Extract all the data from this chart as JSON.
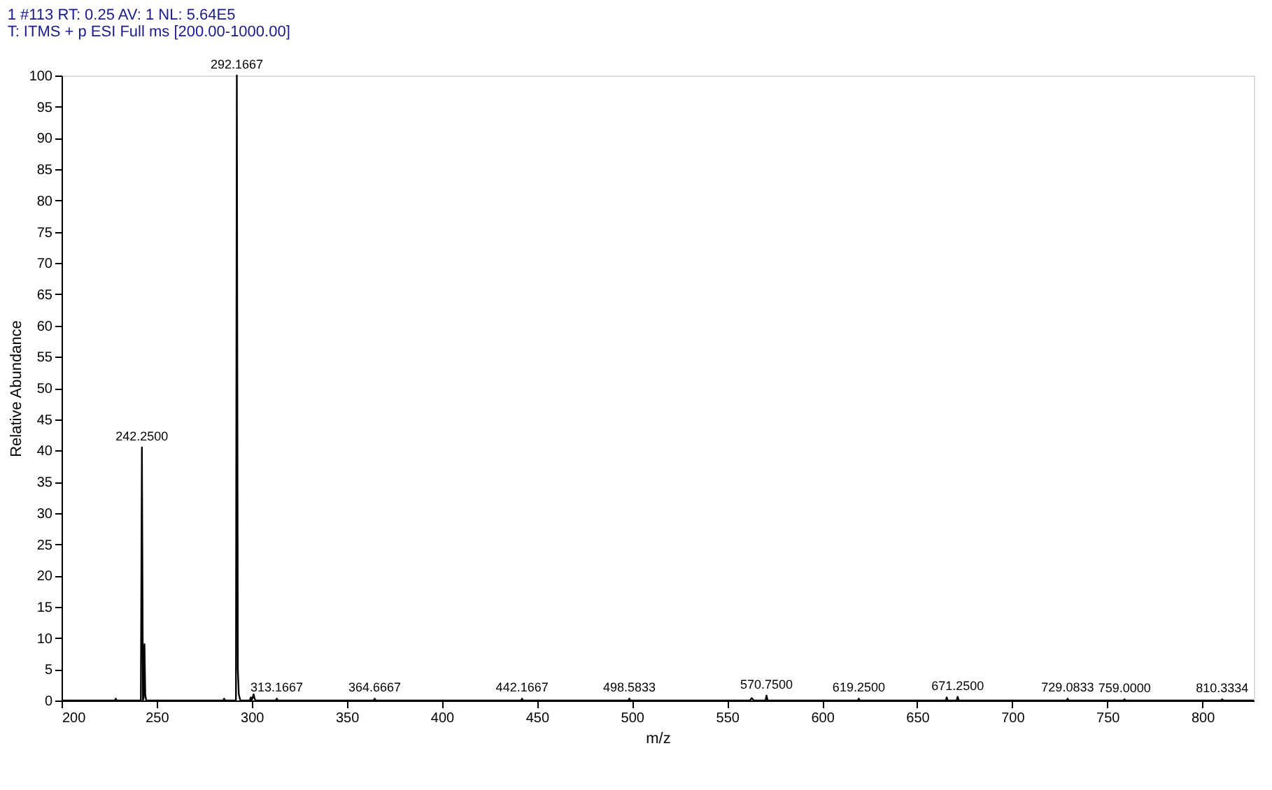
{
  "chart_data": {
    "type": "line",
    "title": "1 #113  RT: 0.25  AV: 1  NL: 5.64E5",
    "subtitle": "T: ITMS + p ESI Full ms [200.00-1000.00]",
    "xlabel": "m/z",
    "ylabel": "Relative Abundance",
    "xlim": [
      200,
      827
    ],
    "xticks": [
      200,
      250,
      300,
      350,
      400,
      450,
      500,
      550,
      600,
      650,
      700,
      750,
      800
    ],
    "ylim": [
      0,
      100
    ],
    "yticks": [
      0,
      5,
      10,
      15,
      20,
      25,
      30,
      35,
      40,
      45,
      50,
      55,
      60,
      65,
      70,
      75,
      80,
      85,
      90,
      95,
      100
    ],
    "grid": false,
    "line_style": "solid",
    "marker": "none",
    "series": [
      {
        "color": "#000000",
        "x": [
          200,
          228,
          228.5,
          229,
          241.7,
          242.25,
          242.8,
          243.2,
          243.6,
          244.0,
          244.5,
          245,
          285,
          285.5,
          286,
          291.7,
          292.17,
          292.7,
          293.2,
          294,
          299,
          299.5,
          300,
          301,
          301.5,
          302,
          312.6,
          313.17,
          313.7,
          364.1,
          364.67,
          365.2,
          441.6,
          442.17,
          442.7,
          498,
          498.58,
          499.1,
          562,
          563,
          564,
          570.2,
          570.75,
          571.3,
          618.7,
          619.25,
          619.8,
          665,
          665.5,
          666,
          670.7,
          671.25,
          671.8,
          728.5,
          729.08,
          729.6,
          758.5,
          759,
          759.5,
          809.8,
          810.33,
          810.9,
          827
        ],
        "values": [
          0,
          0,
          0.3,
          0,
          0,
          40.5,
          0,
          0.5,
          9,
          1,
          0,
          0,
          0,
          0.3,
          0,
          0,
          100,
          5,
          1,
          0,
          0,
          0.5,
          0,
          1,
          0.3,
          0,
          0,
          0.3,
          0,
          0,
          0.3,
          0,
          0,
          0.3,
          0,
          0,
          0.3,
          0,
          0,
          0.4,
          0,
          0,
          0.8,
          0,
          0,
          0.3,
          0,
          0,
          0.5,
          0,
          0,
          0.6,
          0,
          0,
          0.3,
          0,
          0,
          0.2,
          0,
          0,
          0.2,
          0,
          0
        ]
      }
    ],
    "annotations": [
      {
        "text": "242.2500",
        "x": 242.25,
        "y": 40.5
      },
      {
        "text": "292.1667",
        "x": 292.17,
        "y": 100
      },
      {
        "text": "313.1667",
        "x": 313.17,
        "y": 0.3
      },
      {
        "text": "364.6667",
        "x": 364.67,
        "y": 0.3
      },
      {
        "text": "442.1667",
        "x": 442.17,
        "y": 0.3
      },
      {
        "text": "498.5833",
        "x": 498.58,
        "y": 0.3
      },
      {
        "text": "570.7500",
        "x": 570.75,
        "y": 0.8
      },
      {
        "text": "619.2500",
        "x": 619.25,
        "y": 0.3
      },
      {
        "text": "671.2500",
        "x": 671.25,
        "y": 0.6
      },
      {
        "text": "729.0833",
        "x": 729.08,
        "y": 0.3
      },
      {
        "text": "759.0000",
        "x": 759,
        "y": 0.2
      },
      {
        "text": "810.3334",
        "x": 810.33,
        "y": 0.2
      }
    ]
  }
}
